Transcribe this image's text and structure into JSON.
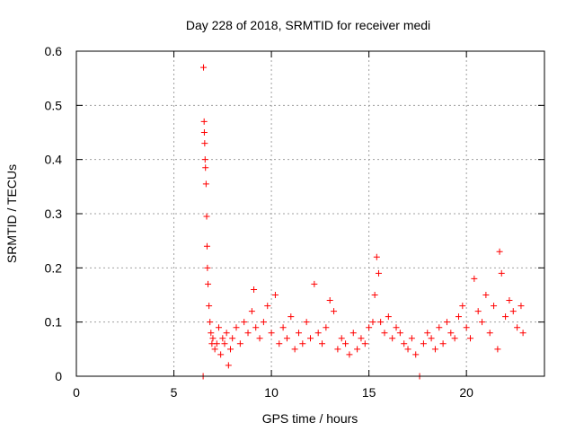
{
  "chart_data": {
    "type": "scatter",
    "title": "Day 228 of 2018, SRMTID for receiver medi",
    "xlabel": "GPS time / hours",
    "ylabel": "SRMTID / TECUs",
    "xlim": [
      0,
      24
    ],
    "ylim": [
      0,
      0.6
    ],
    "xticks": [
      0,
      5,
      10,
      15,
      20
    ],
    "yticks": [
      0,
      0.1,
      0.2,
      0.3,
      0.4,
      0.5,
      0.6
    ],
    "xtick_labels": [
      "0",
      "5",
      "10",
      "15",
      "20"
    ],
    "ytick_labels": [
      "0",
      "0.1",
      "0.2",
      "0.3",
      "0.4",
      "0.5",
      "0.6"
    ],
    "grid": true,
    "marker": "+",
    "color": "#ff0000",
    "series": [
      {
        "name": "SRMTID",
        "x": [
          6.5,
          6.52,
          6.55,
          6.56,
          6.58,
          6.6,
          6.62,
          6.65,
          6.68,
          6.7,
          6.72,
          6.75,
          6.8,
          6.85,
          6.9,
          6.95,
          7.0,
          7.1,
          7.2,
          7.3,
          7.4,
          7.5,
          7.6,
          7.7,
          7.8,
          7.9,
          8.0,
          8.2,
          8.4,
          8.6,
          8.8,
          9.0,
          9.1,
          9.2,
          9.4,
          9.6,
          9.8,
          10.0,
          10.2,
          10.4,
          10.6,
          10.8,
          11.0,
          11.2,
          11.4,
          11.6,
          11.8,
          12.0,
          12.2,
          12.4,
          12.6,
          12.8,
          13.0,
          13.2,
          13.4,
          13.6,
          13.8,
          14.0,
          14.2,
          14.4,
          14.6,
          14.8,
          15.0,
          15.2,
          15.3,
          15.4,
          15.5,
          15.6,
          15.8,
          16.0,
          16.2,
          16.4,
          16.6,
          16.8,
          17.0,
          17.2,
          17.4,
          17.6,
          17.8,
          18.0,
          18.2,
          18.4,
          18.6,
          18.8,
          19.0,
          19.2,
          19.4,
          19.6,
          19.8,
          20.0,
          20.2,
          20.4,
          20.6,
          20.8,
          21.0,
          21.2,
          21.4,
          21.6,
          21.7,
          21.8,
          22.0,
          22.2,
          22.4,
          22.6,
          22.8,
          22.9
        ],
        "y": [
          0.0,
          0.57,
          0.47,
          0.45,
          0.43,
          0.4,
          0.385,
          0.355,
          0.295,
          0.24,
          0.2,
          0.17,
          0.13,
          0.1,
          0.08,
          0.06,
          0.07,
          0.05,
          0.06,
          0.09,
          0.04,
          0.07,
          0.06,
          0.08,
          0.02,
          0.05,
          0.07,
          0.09,
          0.06,
          0.1,
          0.08,
          0.12,
          0.16,
          0.09,
          0.07,
          0.1,
          0.13,
          0.08,
          0.15,
          0.06,
          0.09,
          0.07,
          0.11,
          0.05,
          0.08,
          0.06,
          0.1,
          0.07,
          0.17,
          0.08,
          0.06,
          0.09,
          0.14,
          0.12,
          0.05,
          0.07,
          0.06,
          0.04,
          0.08,
          0.05,
          0.07,
          0.06,
          0.09,
          0.1,
          0.15,
          0.22,
          0.19,
          0.1,
          0.08,
          0.11,
          0.07,
          0.09,
          0.08,
          0.06,
          0.05,
          0.07,
          0.04,
          0.0,
          0.06,
          0.08,
          0.07,
          0.05,
          0.09,
          0.06,
          0.1,
          0.08,
          0.07,
          0.11,
          0.13,
          0.09,
          0.07,
          0.18,
          0.12,
          0.1,
          0.15,
          0.08,
          0.13,
          0.05,
          0.23,
          0.19,
          0.11,
          0.14,
          0.12,
          0.09,
          0.13,
          0.08
        ]
      }
    ]
  }
}
